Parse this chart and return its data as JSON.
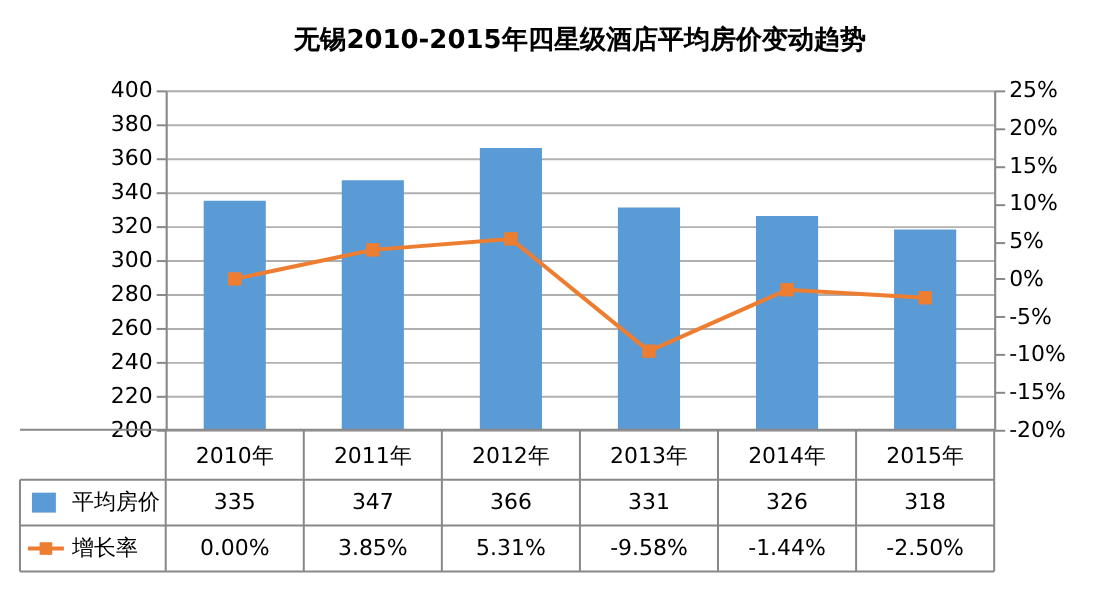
{
  "chart_data": {
    "type": "bar",
    "title": "无锡2010-2015年四星级酒店平均房价变动趋势",
    "categories": [
      "2010年",
      "2011年",
      "2012年",
      "2013年",
      "2014年",
      "2015年"
    ],
    "series": [
      {
        "name": "平均房价",
        "color": "#5b9bd5",
        "values": [
          335,
          347,
          366,
          331,
          326,
          318
        ],
        "value_labels": [
          "335",
          "347",
          "366",
          "331",
          "326",
          "318"
        ]
      },
      {
        "name": "增长率",
        "type": "line",
        "axis": "y2",
        "color": "#ed7d31",
        "marker": "square",
        "values": [
          0.0,
          3.85,
          5.31,
          -9.58,
          -1.44,
          -2.5
        ],
        "value_labels": [
          "0.00%",
          "3.85%",
          "5.31%",
          "-9.58%",
          "-1.44%",
          "-2.50%"
        ]
      }
    ],
    "ylim": [
      200,
      400
    ],
    "yticks": [
      200,
      220,
      240,
      260,
      280,
      300,
      320,
      340,
      360,
      380,
      400
    ],
    "y2lim": [
      -20,
      25
    ],
    "y2ticks": [
      {
        "value": -20,
        "label": "-20%"
      },
      {
        "value": -15,
        "label": "-15%"
      },
      {
        "value": -10,
        "label": "-10%"
      },
      {
        "value": -5,
        "label": "-5%"
      },
      {
        "value": 0,
        "label": "0%"
      },
      {
        "value": 5,
        "label": "5%"
      },
      {
        "value": 10,
        "label": "10%"
      },
      {
        "value": 15,
        "label": "15%"
      },
      {
        "value": 20,
        "label": "20%"
      },
      {
        "value": 25,
        "label": "25%"
      }
    ],
    "grid": "y",
    "legend": "bottom"
  }
}
